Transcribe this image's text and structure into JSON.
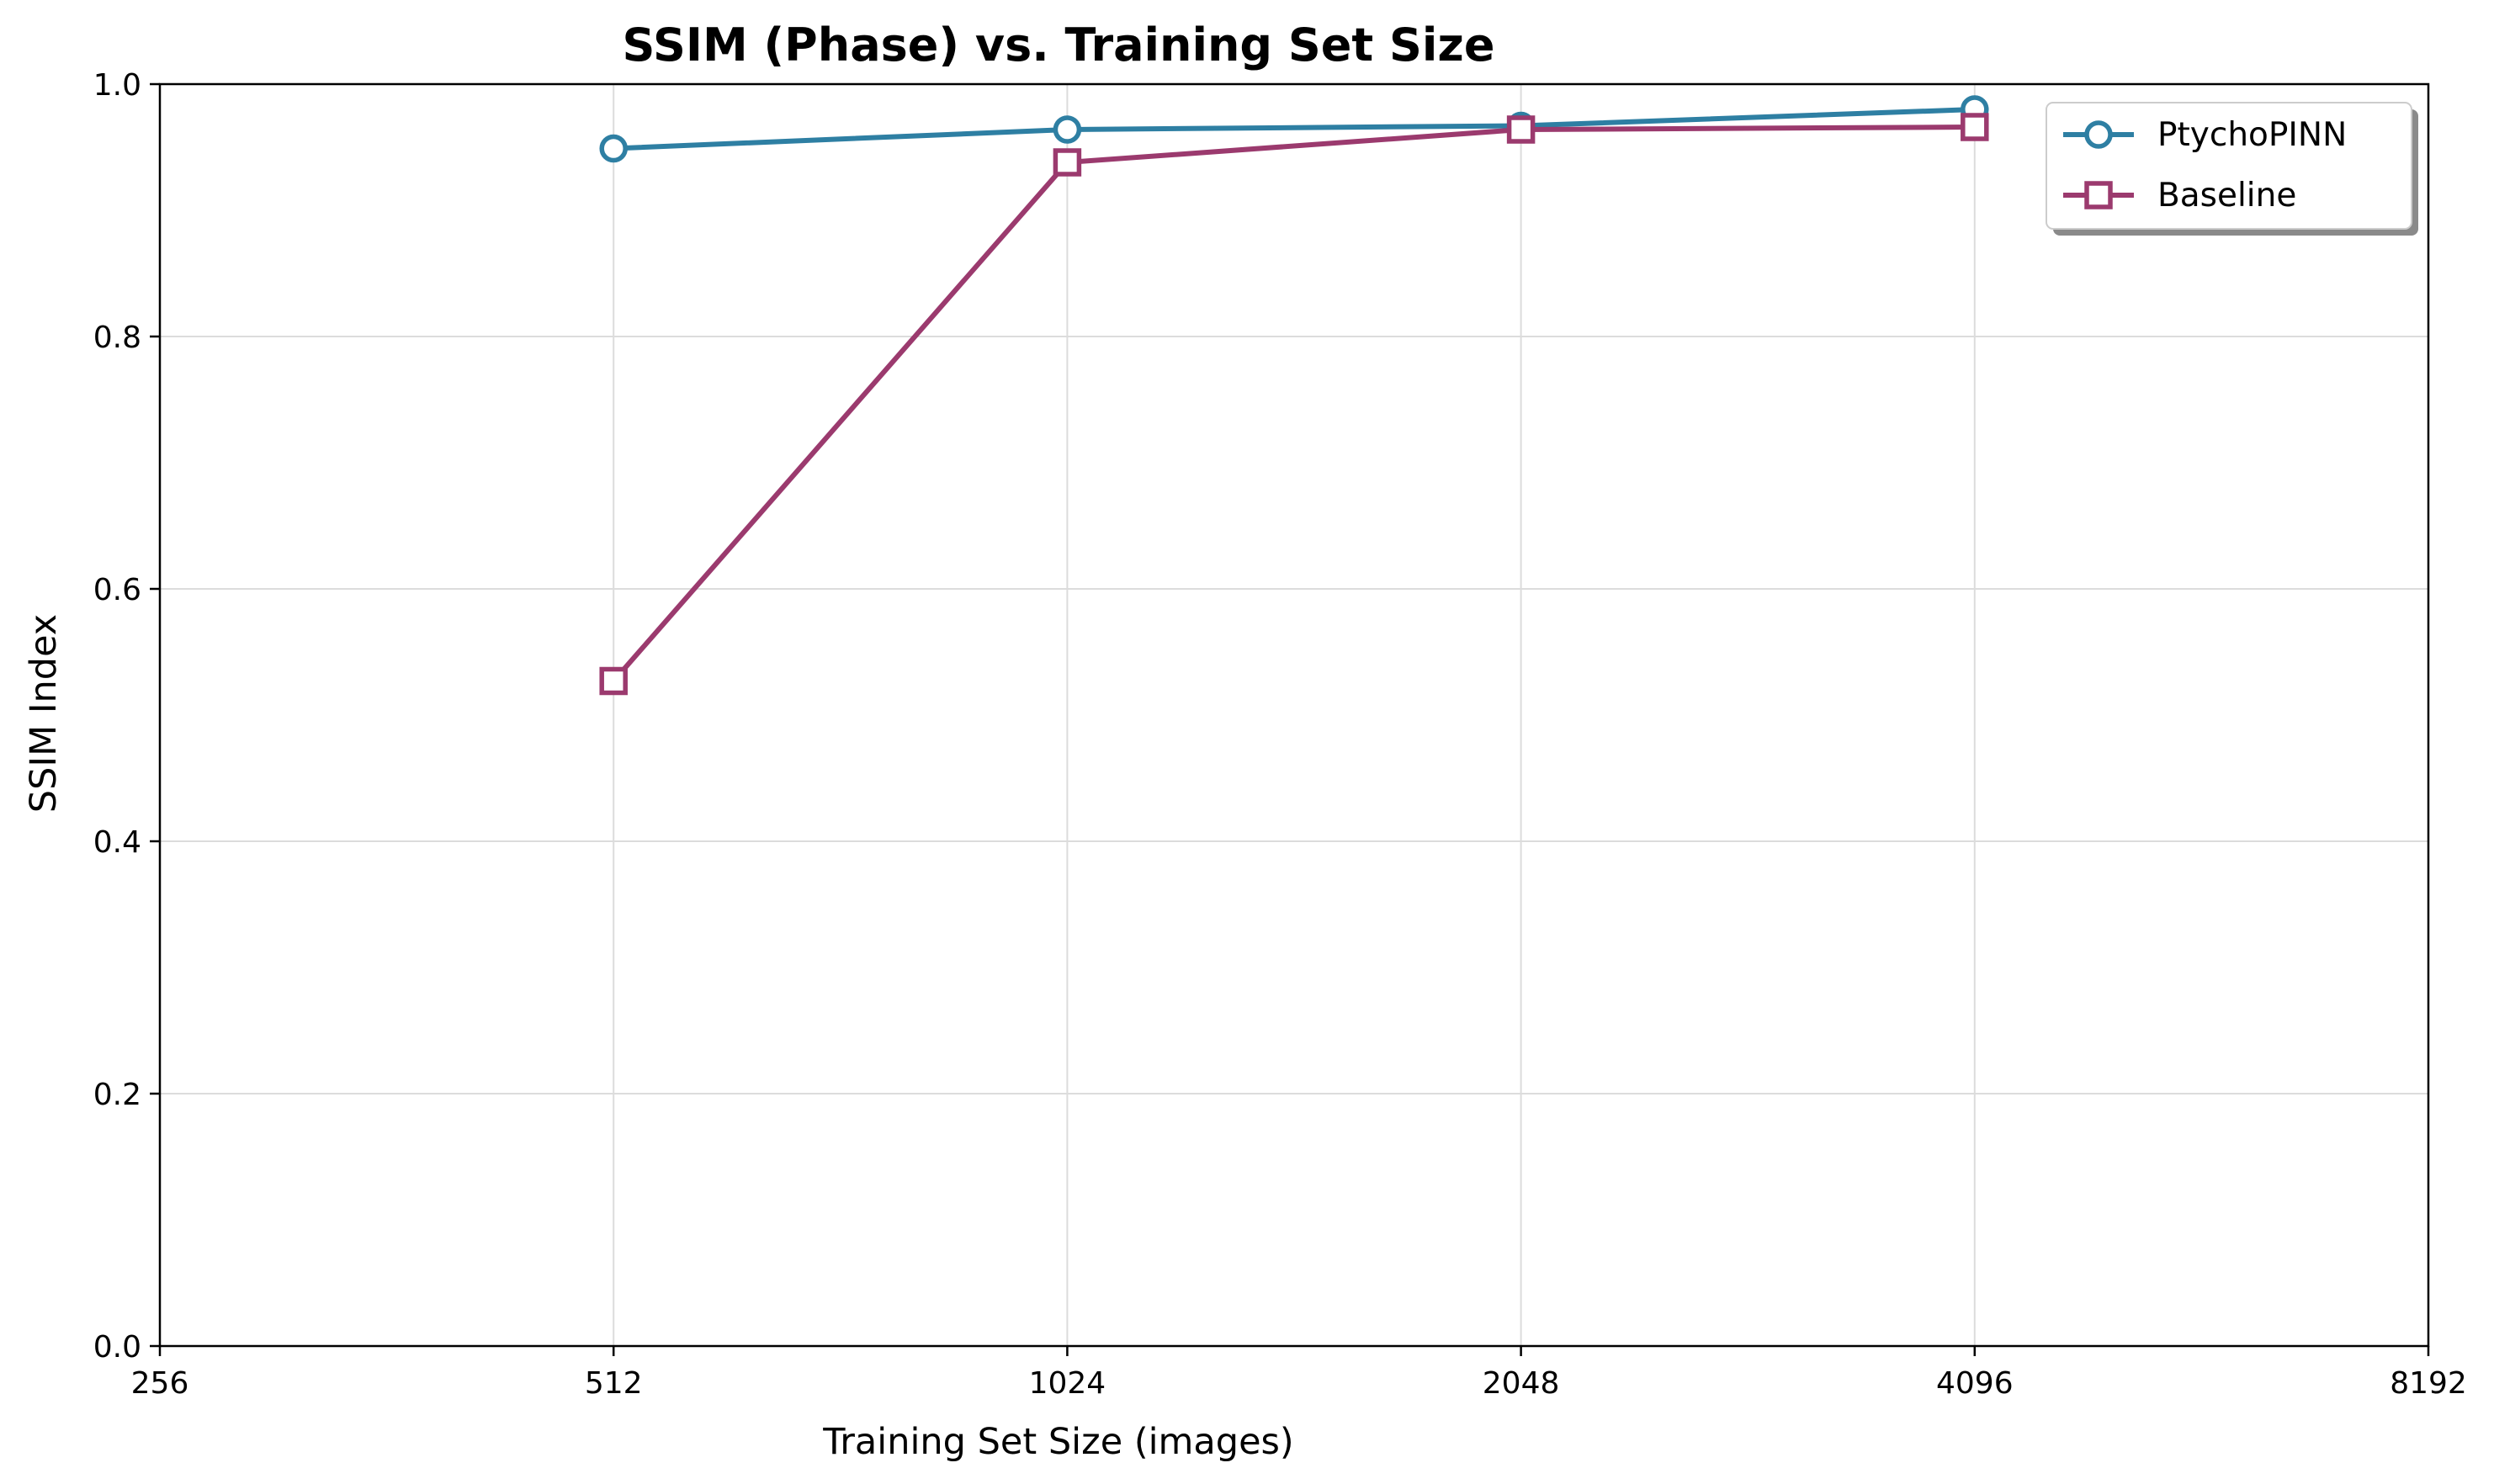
{
  "chart_data": {
    "type": "line",
    "title": "SSIM (Phase) vs. Training Set Size",
    "xlabel": "Training Set Size (images)",
    "ylabel": "SSIM Index",
    "x_scale": "log2",
    "xlim": [
      256,
      8192
    ],
    "ylim": [
      0.0,
      1.0
    ],
    "x_ticks": [
      "256",
      "512",
      "1024",
      "2048",
      "4096",
      "8192"
    ],
    "y_ticks": [
      "0.0",
      "0.2",
      "0.4",
      "0.6",
      "0.8",
      "1.0"
    ],
    "grid": true,
    "legend_position": "top-right",
    "x": [
      512,
      1024,
      2048,
      4096
    ],
    "series": [
      {
        "name": "PtychoPINN",
        "marker": "circle",
        "color": "#2e7fa3",
        "values": [
          0.949,
          0.964,
          0.967,
          0.98
        ]
      },
      {
        "name": "Baseline",
        "marker": "square",
        "color": "#9b3a6e",
        "values": [
          0.527,
          0.938,
          0.964,
          0.966
        ]
      }
    ]
  }
}
